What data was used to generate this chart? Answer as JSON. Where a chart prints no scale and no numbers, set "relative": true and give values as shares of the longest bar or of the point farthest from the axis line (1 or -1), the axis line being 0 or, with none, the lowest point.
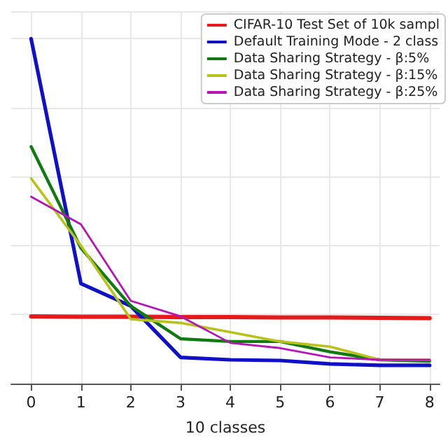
{
  "chart_data": {
    "type": "line",
    "relative": true,
    "xlabel": "10 classes",
    "x": [
      0,
      1,
      2,
      3,
      4,
      5,
      6,
      7,
      8
    ],
    "xlim": [
      -0.4,
      8.2
    ],
    "xticks": [
      0,
      1,
      2,
      3,
      4,
      5,
      6,
      7,
      8
    ],
    "tick_labels": "x",
    "grid": true,
    "legend": "top right",
    "marker": "none",
    "line_style": "solid",
    "series": [
      {
        "name": "CIFAR-10 Test Set of 10k sampl",
        "color": "#e41a1c",
        "values": [
          0.195,
          0.194,
          0.194,
          0.193,
          0.193,
          0.192,
          0.192,
          0.191,
          0.19
        ]
      },
      {
        "name": "Default Training Mode - 2 class",
        "color": "#1010c8",
        "values": [
          1,
          0.29,
          0.225,
          0.076,
          0.069,
          0.067,
          0.057,
          0.053,
          0.053
        ]
      },
      {
        "name": "Data Sharing Strategy - β:5%",
        "color": "#117a11",
        "values": [
          0.687,
          0.393,
          0.225,
          0.13,
          0.122,
          0.122,
          0.092,
          0.069,
          0.065
        ]
      },
      {
        "name": "Data Sharing Strategy - β:15%",
        "color": "#b8c21a",
        "values": [
          0.595,
          0.4,
          0.187,
          0.176,
          0.149,
          0.122,
          0.107,
          0.069,
          0.069
        ]
      },
      {
        "name": "Data Sharing Strategy - β:25%",
        "color": "#b515b5",
        "values": [
          0.542,
          0.462,
          0.24,
          0.195,
          0.118,
          0.103,
          0.076,
          0.069,
          0.069
        ]
      }
    ]
  }
}
